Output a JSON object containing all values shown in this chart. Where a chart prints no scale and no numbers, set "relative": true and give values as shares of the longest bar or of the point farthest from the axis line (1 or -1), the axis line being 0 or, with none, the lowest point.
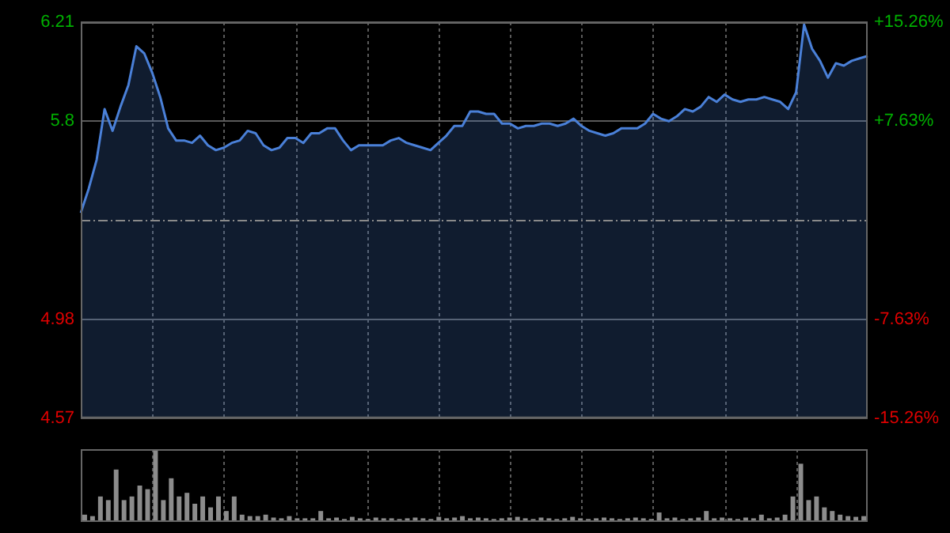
{
  "chart_data": [
    {
      "type": "area",
      "categories": [
        null,
        null,
        null,
        null,
        null,
        null,
        null,
        null,
        null,
        null,
        null,
        null,
        null,
        null,
        null,
        null,
        null,
        null,
        null,
        null,
        null,
        null,
        null,
        null,
        null,
        null,
        null,
        null,
        null,
        null,
        null,
        null,
        null,
        null,
        null,
        null,
        null,
        null,
        null,
        null,
        null,
        null,
        null,
        null,
        null,
        null,
        null,
        null,
        null,
        null,
        null,
        null,
        null,
        null,
        null,
        null,
        null,
        null,
        null,
        null,
        null,
        null,
        null,
        null,
        null,
        null,
        null,
        null,
        null,
        null,
        null,
        null,
        null,
        null,
        null,
        null,
        null,
        null,
        null,
        null,
        null,
        null,
        null,
        null,
        null,
        null,
        null,
        null,
        null,
        null,
        null,
        null,
        null,
        null,
        null,
        null,
        null,
        null,
        null,
        null
      ],
      "series": [
        {
          "color": "#4a80d8",
          "values": [
            5.42,
            5.52,
            5.64,
            5.85,
            5.76,
            5.86,
            5.95,
            6.11,
            6.08,
            6.0,
            5.9,
            5.77,
            5.72,
            5.72,
            5.71,
            5.74,
            5.7,
            5.68,
            5.69,
            5.71,
            5.72,
            5.76,
            5.75,
            5.7,
            5.68,
            5.69,
            5.73,
            5.73,
            5.71,
            5.75,
            5.75,
            5.77,
            5.77,
            5.72,
            5.68,
            5.7,
            5.7,
            5.7,
            5.7,
            5.72,
            5.73,
            5.71,
            5.7,
            5.69,
            5.68,
            5.71,
            5.74,
            5.78,
            5.78,
            5.84,
            5.84,
            5.83,
            5.83,
            5.79,
            5.79,
            5.77,
            5.78,
            5.78,
            5.79,
            5.79,
            5.78,
            5.79,
            5.81,
            5.78,
            5.76,
            5.75,
            5.74,
            5.75,
            5.77,
            5.77,
            5.77,
            5.79,
            5.83,
            5.81,
            5.8,
            5.82,
            5.85,
            5.84,
            5.86,
            5.9,
            5.88,
            5.91,
            5.89,
            5.88,
            5.89,
            5.89,
            5.9,
            5.89,
            5.88,
            5.85,
            5.92,
            6.2,
            6.1,
            6.05,
            5.98,
            6.04,
            6.03,
            6.05,
            6.06,
            6.07
          ]
        }
      ],
      "ylim": [
        4.57,
        6.21
      ],
      "yticks": [
        4.57,
        4.98,
        5.8,
        6.21
      ],
      "y2lim": [
        -15.26,
        15.26
      ],
      "y2ticks": [
        {
          "value": -15.26,
          "label": "-15.26%"
        },
        {
          "value": -7.63,
          "label": "-7.63%"
        },
        {
          "value": 7.63,
          "label": "+7.63%"
        },
        {
          "value": 15.26,
          "label": "+15.26%"
        }
      ],
      "ref_lines": [
        {
          "axis": "y",
          "value": 5.39,
          "line_style": "dashed"
        }
      ],
      "grid": true,
      "legend": false
    },
    {
      "type": "bar",
      "relative": true,
      "grid": "x",
      "legend": false,
      "categories": [
        null,
        null,
        null,
        null,
        null,
        null,
        null,
        null,
        null,
        null,
        null,
        null,
        null,
        null,
        null,
        null,
        null,
        null,
        null,
        null,
        null,
        null,
        null,
        null,
        null,
        null,
        null,
        null,
        null,
        null,
        null,
        null,
        null,
        null,
        null,
        null,
        null,
        null,
        null,
        null,
        null,
        null,
        null,
        null,
        null,
        null,
        null,
        null,
        null,
        null,
        null,
        null,
        null,
        null,
        null,
        null,
        null,
        null,
        null,
        null,
        null,
        null,
        null,
        null,
        null,
        null,
        null,
        null,
        null,
        null,
        null,
        null,
        null,
        null,
        null,
        null,
        null,
        null,
        null,
        null,
        null,
        null,
        null,
        null,
        null,
        null,
        null,
        null,
        null,
        null,
        null,
        null,
        null,
        null,
        null,
        null,
        null,
        null,
        null,
        null
      ],
      "series": [
        {
          "color": "#8c8c8c",
          "values": [
            0.1,
            0.08,
            0.35,
            0.3,
            0.72,
            0.3,
            0.35,
            0.5,
            0.45,
            1.0,
            0.3,
            0.6,
            0.35,
            0.4,
            0.25,
            0.35,
            0.2,
            0.35,
            0.15,
            0.35,
            0.1,
            0.08,
            0.08,
            0.1,
            0.06,
            0.05,
            0.08,
            0.05,
            0.05,
            0.05,
            0.15,
            0.05,
            0.06,
            0.04,
            0.07,
            0.05,
            0.04,
            0.06,
            0.05,
            0.05,
            0.04,
            0.05,
            0.06,
            0.05,
            0.04,
            0.07,
            0.05,
            0.06,
            0.08,
            0.05,
            0.06,
            0.05,
            0.04,
            0.05,
            0.06,
            0.07,
            0.05,
            0.04,
            0.06,
            0.05,
            0.04,
            0.05,
            0.07,
            0.05,
            0.04,
            0.05,
            0.06,
            0.05,
            0.04,
            0.05,
            0.06,
            0.05,
            0.04,
            0.13,
            0.05,
            0.06,
            0.04,
            0.05,
            0.06,
            0.15,
            0.05,
            0.06,
            0.05,
            0.04,
            0.06,
            0.05,
            0.1,
            0.05,
            0.06,
            0.1,
            0.35,
            0.8,
            0.3,
            0.35,
            0.2,
            0.15,
            0.1,
            0.08,
            0.07,
            0.08
          ]
        }
      ]
    }
  ]
}
